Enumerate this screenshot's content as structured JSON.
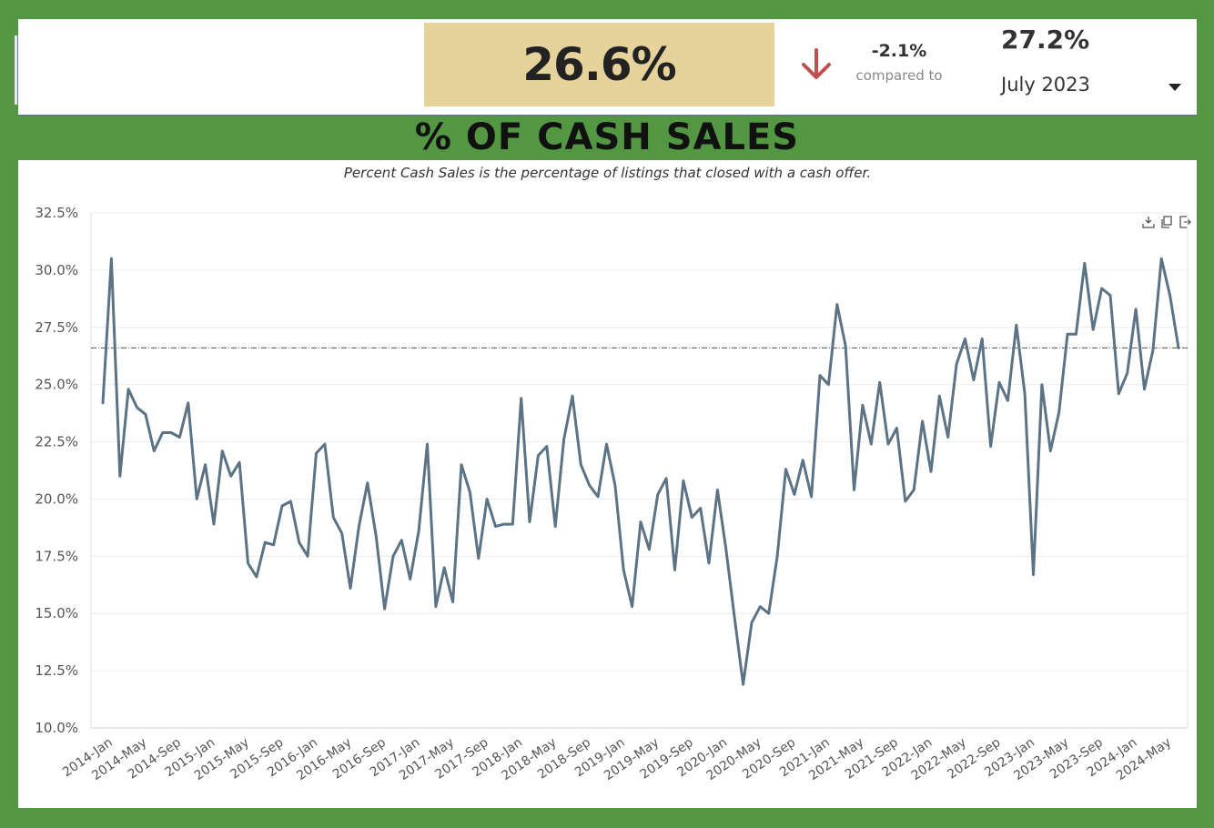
{
  "header": {
    "current_value": "26.6%",
    "change": "-2.1%",
    "compared_label": "compared to",
    "compare_value": "27.2%",
    "compare_date": "July 2023",
    "down_color": "#c0504d"
  },
  "title": "% OF CASH SALES",
  "subtitle": "Percent Cash Sales is the percentage of listings that closed with a cash offer.",
  "icons": [
    "download-icon",
    "copy-icon",
    "share-icon"
  ],
  "chart_data": {
    "type": "line",
    "title": "% OF CASH SALES",
    "ylim": [
      10.0,
      32.5
    ],
    "yticks": [
      "10.0%",
      "12.5%",
      "15.0%",
      "17.5%",
      "20.0%",
      "22.5%",
      "25.0%",
      "27.5%",
      "30.0%",
      "32.5%"
    ],
    "xticks": [
      "2014-Jan",
      "2014-May",
      "2014-Sep",
      "2015-Jan",
      "2015-May",
      "2015-Sep",
      "2016-Jan",
      "2016-May",
      "2016-Sep",
      "2017-Jan",
      "2017-May",
      "2017-Sep",
      "2018-Jan",
      "2018-May",
      "2018-Sep",
      "2019-Jan",
      "2019-May",
      "2019-Sep",
      "2020-Jan",
      "2020-May",
      "2020-Sep",
      "2021-Jan",
      "2021-May",
      "2021-Sep",
      "2022-Jan",
      "2022-May",
      "2022-Sep",
      "2023-Jan",
      "2023-May",
      "2023-Sep",
      "2024-Jan",
      "2024-May"
    ],
    "start": "2014-Jan",
    "grid": true,
    "line_color": "#5b7384",
    "reference_line": 26.6,
    "values": [
      24.2,
      30.5,
      21.0,
      24.8,
      24.0,
      23.7,
      22.1,
      22.9,
      22.9,
      22.7,
      24.2,
      20.0,
      21.5,
      18.9,
      22.1,
      21.0,
      21.6,
      17.2,
      16.6,
      18.1,
      18.0,
      19.7,
      19.9,
      18.1,
      17.5,
      22.0,
      22.4,
      19.2,
      18.5,
      16.1,
      18.8,
      20.7,
      18.4,
      15.2,
      17.5,
      18.2,
      16.5,
      18.6,
      22.4,
      15.3,
      17.0,
      15.5,
      21.5,
      20.3,
      17.4,
      20.0,
      18.8,
      18.9,
      18.9,
      24.4,
      19.0,
      21.9,
      22.3,
      18.8,
      22.6,
      24.5,
      21.5,
      20.6,
      20.1,
      22.4,
      20.6,
      16.9,
      15.3,
      19.0,
      17.8,
      20.2,
      20.9,
      16.9,
      20.8,
      19.2,
      19.6,
      17.2,
      20.4,
      17.8,
      14.8,
      11.9,
      14.6,
      15.3,
      15.0,
      17.5,
      21.3,
      20.2,
      21.7,
      20.1,
      25.4,
      25.0,
      28.5,
      26.7,
      20.4,
      24.1,
      22.4,
      25.1,
      22.4,
      23.1,
      19.9,
      20.4,
      23.4,
      21.2,
      24.5,
      22.7,
      25.9,
      27.0,
      25.2,
      27.0,
      22.3,
      25.1,
      24.3,
      27.6,
      24.6,
      16.7,
      25.0,
      22.1,
      23.8,
      27.2,
      27.2,
      30.3,
      27.4,
      29.2,
      28.9,
      24.6,
      25.5,
      28.3,
      24.8,
      26.5,
      30.5,
      28.9,
      26.6
    ]
  }
}
